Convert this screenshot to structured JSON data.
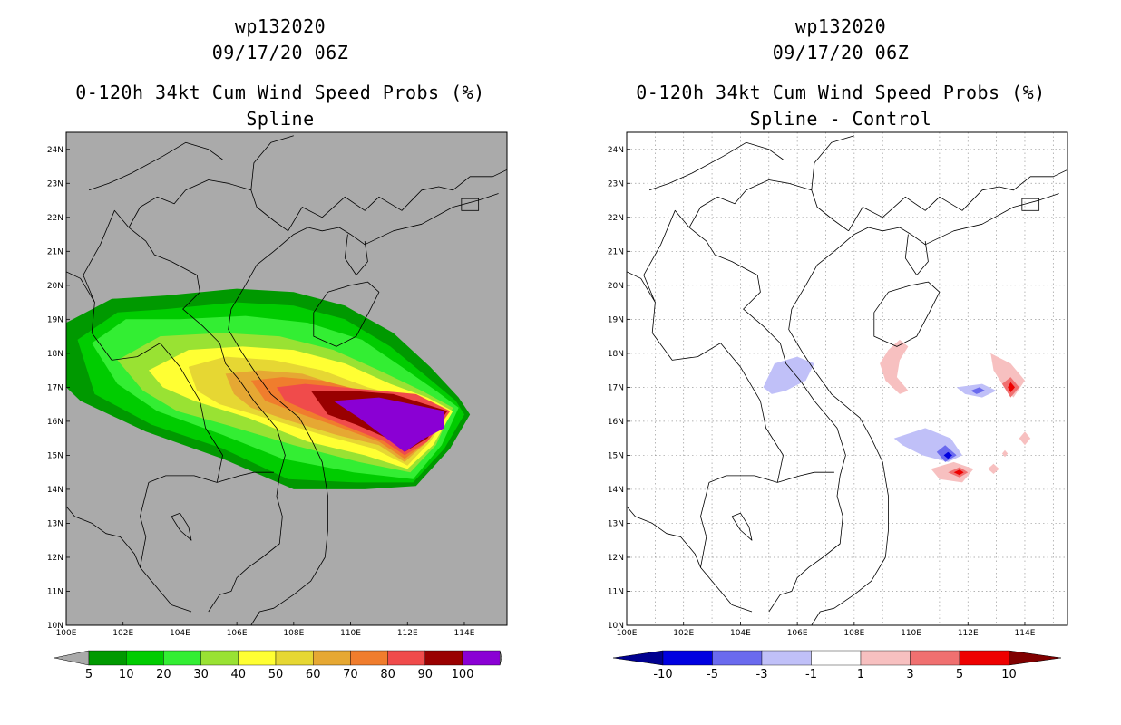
{
  "domain": "Map",
  "panels": [
    {
      "id": "spline",
      "title_line1": "wp132020",
      "title_line2": "09/17/20 06Z",
      "title_line3": "0-120h 34kt Cum Wind Speed Probs (%)",
      "title_line4": "Spline",
      "colorbar": {
        "labels": [
          "5",
          "10",
          "20",
          "30",
          "40",
          "50",
          "60",
          "70",
          "80",
          "90",
          "100"
        ],
        "colors": [
          "#009900",
          "#00cc00",
          "#33ee33",
          "#99e233",
          "#ffff33",
          "#e6d733",
          "#e6a833",
          "#f07d2d",
          "#f04b4b",
          "#990000",
          "#8a00d4"
        ],
        "end_colors": [
          "#aaaaaa",
          "#aaaaaa"
        ]
      }
    },
    {
      "id": "spline-minus-control",
      "title_line1": "wp132020",
      "title_line2": "09/17/20 06Z",
      "title_line3": "0-120h 34kt Cum Wind Speed Probs (%)",
      "title_line4": "Spline - Control",
      "colorbar": {
        "labels": [
          "-10",
          "-5",
          "-3",
          "-1",
          "1",
          "3",
          "5",
          "10"
        ],
        "colors": [
          "#0000e0",
          "#6a6aee",
          "#c0c0f8",
          "#ffffff",
          "#f7c0c0",
          "#f07070",
          "#ee0000"
        ],
        "end_colors": [
          "#000090",
          "#800000"
        ]
      }
    }
  ],
  "map": {
    "lon_labels": [
      "100E",
      "102E",
      "104E",
      "106E",
      "108E",
      "110E",
      "112E",
      "114E"
    ],
    "lat_labels": [
      "10N",
      "11N",
      "12N",
      "13N",
      "14N",
      "15N",
      "16N",
      "17N",
      "18N",
      "19N",
      "20N",
      "21N",
      "22N",
      "23N",
      "24N"
    ],
    "lon_range": [
      100,
      115.5
    ],
    "lat_range": [
      10,
      24.5
    ]
  },
  "colors": {
    "land_ocean_left": "#aaaaaa",
    "coast": "#000000"
  }
}
